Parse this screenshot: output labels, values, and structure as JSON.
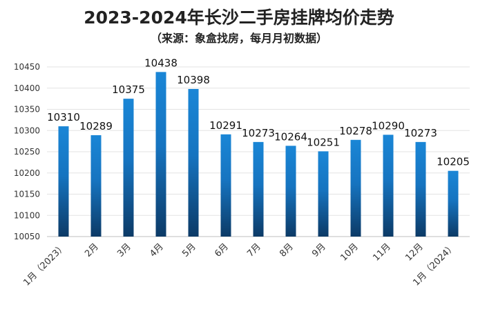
{
  "chart_data": {
    "type": "bar",
    "title": "2023-2024年长沙二手房挂牌均价走势",
    "subtitle": "（来源：象盒找房，每月月初数据）",
    "categories": [
      "1月（2023）",
      "2月",
      "3月",
      "4月",
      "5月",
      "6月",
      "7月",
      "8月",
      "9月",
      "10月",
      "11月",
      "12月",
      "1月（2024）"
    ],
    "values": [
      10310,
      10289,
      10375,
      10438,
      10398,
      10291,
      10273,
      10264,
      10251,
      10278,
      10290,
      10273,
      10205
    ],
    "data_labels": [
      "10310",
      "10289",
      "10375",
      "10438",
      "10398",
      "10291",
      "10273",
      "10264",
      "10251",
      "10278",
      "10290",
      "10273",
      "10205"
    ],
    "y_ticks": [
      "10050",
      "10100",
      "10150",
      "10200",
      "10250",
      "10300",
      "10350",
      "10400",
      "10450"
    ],
    "ylim": [
      10050,
      10450
    ],
    "grid": true,
    "bar_color_top": "#1a86d6",
    "bar_color_bottom": "#0c3a66"
  }
}
